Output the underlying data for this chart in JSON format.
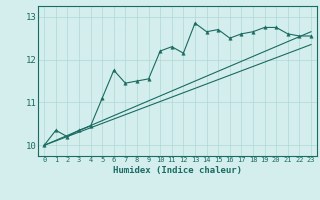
{
  "xlabel": "Humidex (Indice chaleur)",
  "ylabel": "",
  "xlim": [
    -0.5,
    23.5
  ],
  "ylim": [
    9.75,
    13.25
  ],
  "xticks": [
    0,
    1,
    2,
    3,
    4,
    5,
    6,
    7,
    8,
    9,
    10,
    11,
    12,
    13,
    14,
    15,
    16,
    17,
    18,
    19,
    20,
    21,
    22,
    23
  ],
  "yticks": [
    10,
    11,
    12,
    13
  ],
  "bg_color": "#d4eeee",
  "line_color": "#1a6b60",
  "grid_color": "#b0d8d8",
  "curve_x": [
    0,
    1,
    2,
    3,
    4,
    5,
    6,
    7,
    8,
    9,
    10,
    11,
    12,
    13,
    14,
    15,
    16,
    17,
    18,
    19,
    20,
    21,
    22,
    23
  ],
  "curve_y": [
    10.0,
    10.35,
    10.2,
    10.35,
    10.45,
    11.1,
    11.75,
    11.45,
    11.5,
    11.55,
    12.2,
    12.3,
    12.15,
    12.85,
    12.65,
    12.7,
    12.5,
    12.6,
    12.65,
    12.75,
    12.75,
    12.6,
    12.55,
    12.55
  ],
  "line1_x": [
    0,
    23
  ],
  "line1_y": [
    10.0,
    12.65
  ],
  "line2_x": [
    0,
    23
  ],
  "line2_y": [
    10.0,
    12.35
  ],
  "marker_size": 2.5,
  "line_width": 0.8
}
